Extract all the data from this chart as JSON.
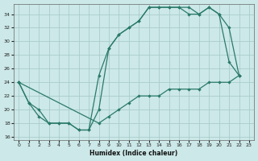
{
  "xlabel": "Humidex (Indice chaleur)",
  "bg_color": "#cce8e8",
  "grid_color": "#aacccc",
  "line_color": "#2a7a6a",
  "xlim": [
    -0.5,
    23.5
  ],
  "ylim": [
    15.5,
    35.5
  ],
  "xticks": [
    0,
    1,
    2,
    3,
    4,
    5,
    6,
    7,
    8,
    9,
    10,
    11,
    12,
    13,
    14,
    15,
    16,
    17,
    18,
    19,
    20,
    21,
    22,
    23
  ],
  "yticks": [
    16,
    18,
    20,
    22,
    24,
    26,
    28,
    30,
    32,
    34
  ],
  "line1_x": [
    0,
    1,
    2,
    3,
    4,
    5,
    6,
    7,
    8,
    9,
    10,
    11,
    12,
    13,
    14,
    15,
    16,
    17,
    18,
    19,
    20,
    21,
    22
  ],
  "line1_y": [
    24,
    21,
    19,
    18,
    18,
    18,
    17,
    17,
    20,
    29,
    31,
    32,
    33,
    35,
    35,
    35,
    35,
    35,
    34,
    35,
    34,
    27,
    25
  ],
  "line2_x": [
    0,
    1,
    2,
    3,
    4,
    5,
    6,
    7,
    8,
    9,
    10,
    11,
    12,
    13,
    14,
    15,
    16,
    17,
    18,
    19,
    20,
    21,
    22
  ],
  "line2_y": [
    24,
    21,
    20,
    18,
    18,
    18,
    17,
    17,
    25,
    29,
    31,
    32,
    33,
    35,
    35,
    35,
    35,
    34,
    34,
    35,
    34,
    32,
    25
  ],
  "line3_x": [
    0,
    8,
    9,
    10,
    11,
    12,
    13,
    14,
    15,
    16,
    17,
    18,
    19,
    20,
    21,
    22
  ],
  "line3_y": [
    24,
    18,
    19,
    20,
    21,
    22,
    22,
    22,
    23,
    23,
    23,
    23,
    24,
    24,
    24,
    25
  ]
}
